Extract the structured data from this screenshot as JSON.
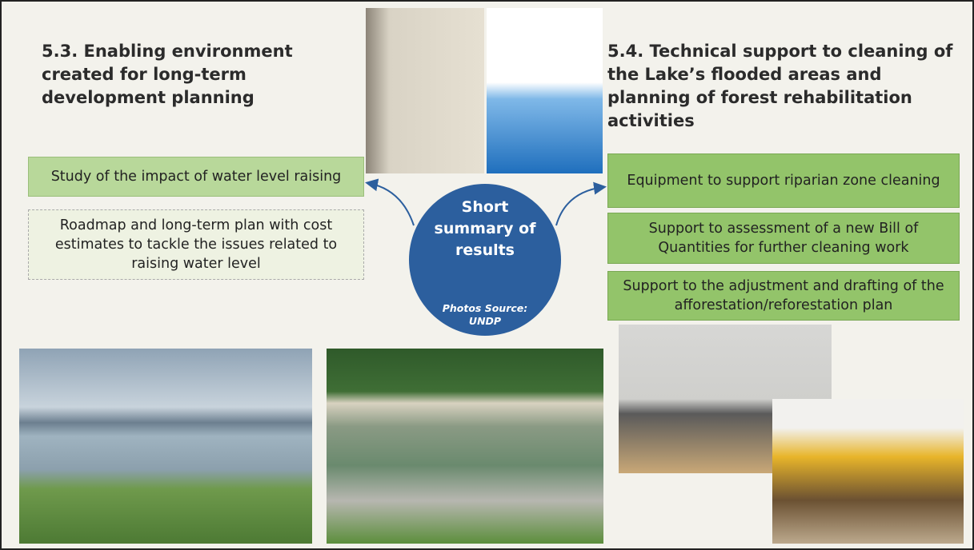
{
  "left": {
    "title": "5.3. Enabling environment created for long-term development planning",
    "items": [
      "Study of the impact of water level raising",
      "Roadmap and long-term plan with cost estimates to tackle the issues related to raising water level"
    ]
  },
  "right": {
    "title": "5.4. Technical support to cleaning of the Lake’s flooded areas and planning of forest rehabilitation activities",
    "items": [
      "Equipment to support riparian zone cleaning",
      "Support to assessment of a new Bill of Quantities for further cleaning work",
      "Support to the adjustment and drafting of the afforestation/reforestation plan"
    ]
  },
  "center": {
    "title": "Short summary of results",
    "source": "Photos Source: UNDP"
  }
}
